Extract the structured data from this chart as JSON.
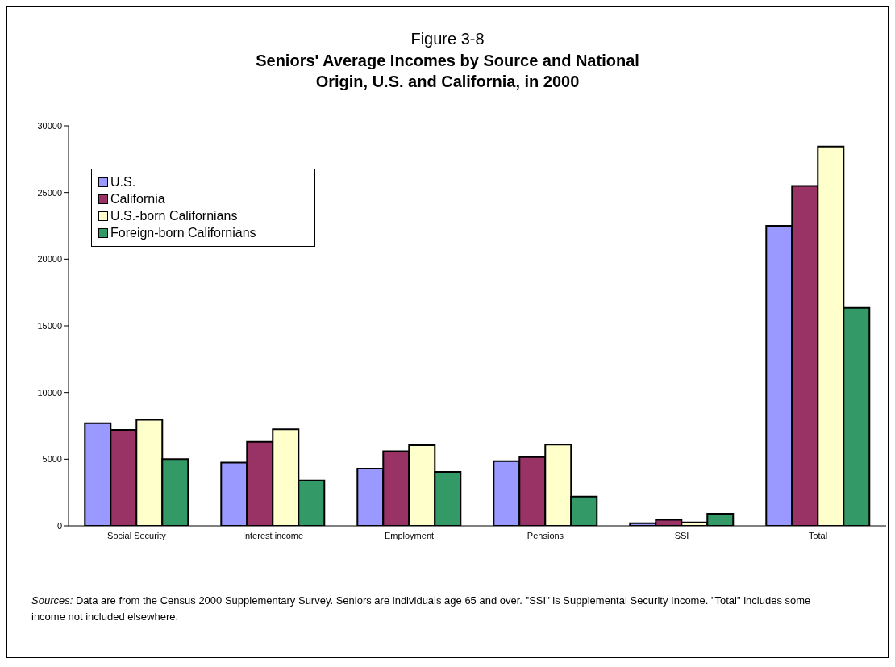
{
  "chart_data": {
    "type": "bar",
    "title": "Seniors' Average Incomes by Source and National Origin, U.S. and California, in 2000",
    "subtitle": "Figure 3-8",
    "categories": [
      "Social Security",
      "Interest income",
      "Employment",
      "Pensions",
      "SSI",
      "Total"
    ],
    "series": [
      {
        "name": "U.S.",
        "color": "#9999ff",
        "values": [
          7700,
          4750,
          4300,
          4850,
          200,
          22500
        ]
      },
      {
        "name": "California",
        "color": "#993366",
        "values": [
          7200,
          6300,
          5600,
          5150,
          450,
          25500
        ]
      },
      {
        "name": "U.S.-born Californians",
        "color": "#ffffcc",
        "values": [
          7950,
          7250,
          6050,
          6100,
          250,
          28450
        ]
      },
      {
        "name": "Foreign-born Californians",
        "color": "#339966",
        "values": [
          5000,
          3400,
          4050,
          2200,
          900,
          16350
        ]
      }
    ],
    "ylim": [
      0,
      30000
    ],
    "yticks": [
      0,
      5000,
      10000,
      15000,
      20000,
      25000,
      30000
    ],
    "grid": false,
    "legend": "top left",
    "annotations": [
      "Sources: Data are from the Census 2000 Supplementary Survey. Seniors are individuals age 65 and over. \"SSI\" is Supplemental Security Income. \"Total\" includes some income not included elsewhere."
    ]
  }
}
